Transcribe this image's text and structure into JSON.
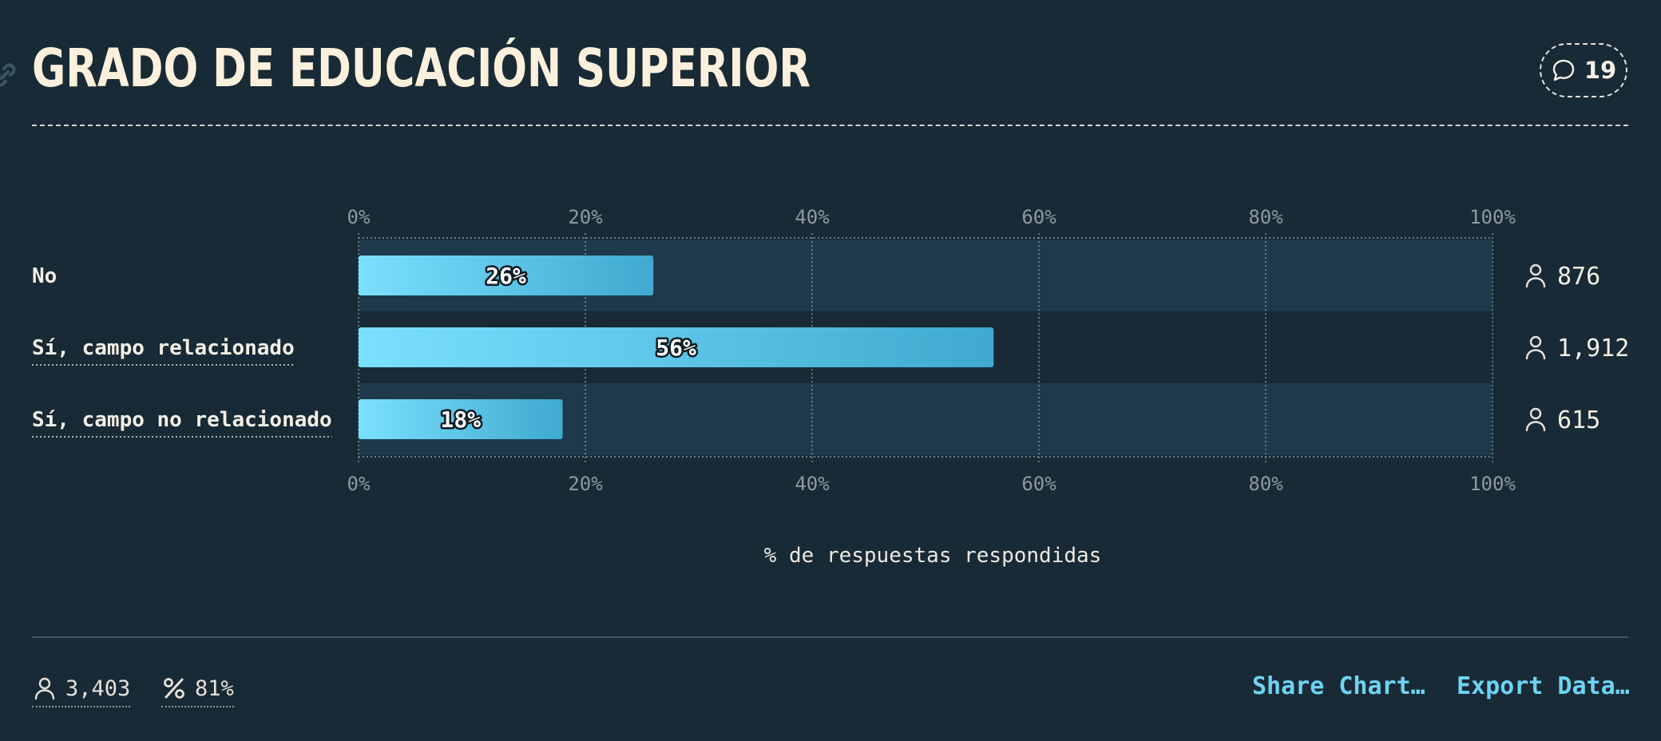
{
  "header": {
    "title": "GRADO DE EDUCACIÓN SUPERIOR",
    "comment_count": "19"
  },
  "chart_data": {
    "type": "bar",
    "orientation": "horizontal",
    "categories": [
      "No",
      "Sí, campo relacionado",
      "Sí, campo no relacionado"
    ],
    "values": [
      26,
      56,
      18
    ],
    "value_labels": [
      "26%",
      "56%",
      "18%"
    ],
    "counts": [
      "876",
      "1,912",
      "615"
    ],
    "xlim": [
      0,
      100
    ],
    "ticks": [
      "0%",
      "20%",
      "40%",
      "60%",
      "80%",
      "100%"
    ],
    "xlabel": "% de respuestas respondidas",
    "grid": true
  },
  "footer": {
    "respondents": "3,403",
    "response_rate": "81%",
    "share_label": "Share Chart…",
    "export_label": "Export Data…"
  },
  "colors": {
    "background": "#182a35",
    "row_band": "#1e3a4a",
    "bar_start": "#7be0ff",
    "bar_end": "#3fa9cf",
    "accent": "#6fd3f3"
  }
}
